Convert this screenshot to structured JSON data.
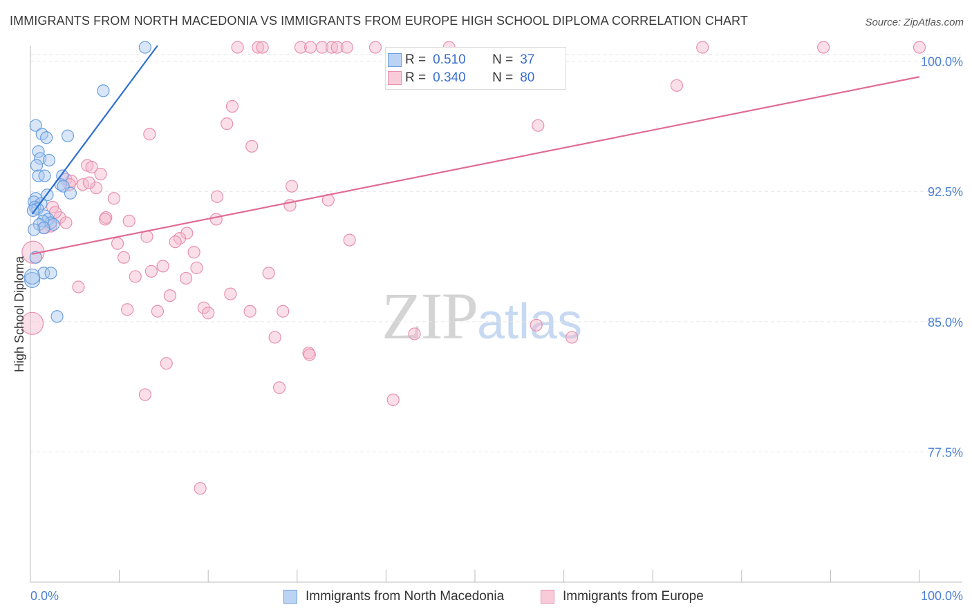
{
  "header": {
    "title": "IMMIGRANTS FROM NORTH MACEDONIA VS IMMIGRANTS FROM EUROPE HIGH SCHOOL DIPLOMA CORRELATION CHART",
    "source": "Source: ZipAtlas.com"
  },
  "watermark": {
    "zip": "ZIP",
    "atlas": "atlas"
  },
  "stats": {
    "row1": {
      "r_label": "R =",
      "r_value": "0.510",
      "n_label": "N =",
      "n_value": "37"
    },
    "row2": {
      "r_label": "R =",
      "r_value": "0.340",
      "n_label": "N =",
      "n_value": "80"
    }
  },
  "legend": {
    "item1": "Immigrants from North Macedonia",
    "item2": "Immigrants from Europe"
  },
  "colors": {
    "blue_fill": "#a8c8f0",
    "blue_stroke": "#6a9fe0",
    "blue_line": "#2f6fd0",
    "pink_fill": "#f5b8cb",
    "pink_stroke": "#e890ad",
    "pink_line": "#e06b95",
    "axis_text": "#4a7fd4",
    "grid": "#e6e6e6"
  },
  "chart_data": {
    "type": "scatter",
    "title": "IMMIGRANTS FROM NORTH MACEDONIA VS IMMIGRANTS FROM EUROPE HIGH SCHOOL DIPLOMA CORRELATION CHART",
    "xlabel": "",
    "ylabel": "High School Diploma",
    "xlim": [
      0,
      100
    ],
    "ylim": [
      70.0,
      100.9
    ],
    "x_tick_labels": [
      "0.0%",
      "100.0%"
    ],
    "y_ticks": [
      77.5,
      85.0,
      92.5,
      100.0
    ],
    "y_tick_labels": [
      "77.5%",
      "85.0%",
      "92.5%",
      "100.0%"
    ],
    "series": [
      {
        "name": "Immigrants from North Macedonia",
        "color": "blue",
        "r": 0.51,
        "n": 37,
        "trendline": {
          "x": [
            0.2,
            14.3
          ],
          "y": [
            91.2,
            100.9
          ]
        },
        "points": [
          {
            "x": 12.9,
            "y": 100.8
          },
          {
            "x": 8.2,
            "y": 98.3
          },
          {
            "x": 0.6,
            "y": 96.3
          },
          {
            "x": 1.3,
            "y": 95.8
          },
          {
            "x": 4.2,
            "y": 95.7
          },
          {
            "x": 1.8,
            "y": 95.6
          },
          {
            "x": 0.9,
            "y": 94.8
          },
          {
            "x": 1.1,
            "y": 94.4
          },
          {
            "x": 2.1,
            "y": 94.3
          },
          {
            "x": 0.7,
            "y": 94.0
          },
          {
            "x": 3.6,
            "y": 93.4
          },
          {
            "x": 0.9,
            "y": 93.4
          },
          {
            "x": 1.6,
            "y": 93.4
          },
          {
            "x": 3.4,
            "y": 92.9
          },
          {
            "x": 3.7,
            "y": 92.8
          },
          {
            "x": 1.9,
            "y": 92.3
          },
          {
            "x": 4.5,
            "y": 92.4
          },
          {
            "x": 0.6,
            "y": 92.1
          },
          {
            "x": 0.4,
            "y": 91.9
          },
          {
            "x": 1.2,
            "y": 91.8
          },
          {
            "x": 0.5,
            "y": 91.6
          },
          {
            "x": 0.8,
            "y": 91.5
          },
          {
            "x": 0.3,
            "y": 91.4
          },
          {
            "x": 1.6,
            "y": 91.1
          },
          {
            "x": 2.0,
            "y": 90.9
          },
          {
            "x": 2.3,
            "y": 90.7
          },
          {
            "x": 1.4,
            "y": 90.8
          },
          {
            "x": 2.6,
            "y": 90.6
          },
          {
            "x": 1.0,
            "y": 90.6
          },
          {
            "x": 1.5,
            "y": 90.4
          },
          {
            "x": 0.4,
            "y": 90.3
          },
          {
            "x": 0.6,
            "y": 88.7
          },
          {
            "x": 1.5,
            "y": 87.8
          },
          {
            "x": 2.3,
            "y": 87.8
          },
          {
            "x": 0.2,
            "y": 87.4
          },
          {
            "x": 3.0,
            "y": 85.3
          },
          {
            "x": 0.2,
            "y": 87.6
          }
        ]
      },
      {
        "name": "Immigrants from Europe",
        "color": "pink",
        "r": 0.34,
        "n": 80,
        "trendline": {
          "x": [
            0.2,
            100.0
          ],
          "y": [
            88.9,
            99.1
          ]
        },
        "points": [
          {
            "x": 23.3,
            "y": 100.8
          },
          {
            "x": 25.6,
            "y": 100.8
          },
          {
            "x": 26.1,
            "y": 100.8
          },
          {
            "x": 30.4,
            "y": 100.8
          },
          {
            "x": 31.5,
            "y": 100.8
          },
          {
            "x": 32.8,
            "y": 100.8
          },
          {
            "x": 33.9,
            "y": 100.8
          },
          {
            "x": 34.5,
            "y": 100.8
          },
          {
            "x": 35.6,
            "y": 100.8
          },
          {
            "x": 38.8,
            "y": 100.8
          },
          {
            "x": 47.1,
            "y": 100.8
          },
          {
            "x": 75.6,
            "y": 100.8
          },
          {
            "x": 89.2,
            "y": 100.8
          },
          {
            "x": 100.0,
            "y": 100.8
          },
          {
            "x": 72.7,
            "y": 98.6
          },
          {
            "x": 22.7,
            "y": 97.4
          },
          {
            "x": 22.1,
            "y": 96.4
          },
          {
            "x": 57.1,
            "y": 96.3
          },
          {
            "x": 13.4,
            "y": 95.8
          },
          {
            "x": 24.9,
            "y": 95.1
          },
          {
            "x": 6.4,
            "y": 94.0
          },
          {
            "x": 6.9,
            "y": 93.9
          },
          {
            "x": 7.9,
            "y": 93.5
          },
          {
            "x": 4.0,
            "y": 93.2
          },
          {
            "x": 4.6,
            "y": 93.1
          },
          {
            "x": 5.9,
            "y": 92.9
          },
          {
            "x": 29.4,
            "y": 92.8
          },
          {
            "x": 7.4,
            "y": 92.7
          },
          {
            "x": 21.0,
            "y": 92.2
          },
          {
            "x": 9.4,
            "y": 92.1
          },
          {
            "x": 33.5,
            "y": 92.0
          },
          {
            "x": 29.2,
            "y": 91.7
          },
          {
            "x": 2.5,
            "y": 91.6
          },
          {
            "x": 3.3,
            "y": 91.0
          },
          {
            "x": 8.5,
            "y": 91.0
          },
          {
            "x": 8.4,
            "y": 90.9
          },
          {
            "x": 20.9,
            "y": 90.9
          },
          {
            "x": 11.1,
            "y": 90.8
          },
          {
            "x": 4.0,
            "y": 90.7
          },
          {
            "x": 2.3,
            "y": 90.5
          },
          {
            "x": 1.6,
            "y": 90.4
          },
          {
            "x": 17.6,
            "y": 90.1
          },
          {
            "x": 13.1,
            "y": 89.9
          },
          {
            "x": 16.8,
            "y": 89.8
          },
          {
            "x": 16.3,
            "y": 89.6
          },
          {
            "x": 35.9,
            "y": 89.7
          },
          {
            "x": 9.8,
            "y": 89.5
          },
          {
            "x": 18.4,
            "y": 89.0
          },
          {
            "x": 0.3,
            "y": 89.0
          },
          {
            "x": 10.5,
            "y": 88.7
          },
          {
            "x": 14.9,
            "y": 88.2
          },
          {
            "x": 18.7,
            "y": 88.1
          },
          {
            "x": 13.6,
            "y": 87.9
          },
          {
            "x": 26.8,
            "y": 87.8
          },
          {
            "x": 11.8,
            "y": 87.6
          },
          {
            "x": 17.5,
            "y": 87.5
          },
          {
            "x": 5.4,
            "y": 87.0
          },
          {
            "x": 22.5,
            "y": 86.6
          },
          {
            "x": 15.7,
            "y": 86.5
          },
          {
            "x": 19.5,
            "y": 85.8
          },
          {
            "x": 10.9,
            "y": 85.7
          },
          {
            "x": 14.3,
            "y": 85.6
          },
          {
            "x": 20.0,
            "y": 85.5
          },
          {
            "x": 24.7,
            "y": 85.6
          },
          {
            "x": 28.4,
            "y": 85.6
          },
          {
            "x": 0.2,
            "y": 84.9
          },
          {
            "x": 56.9,
            "y": 84.8
          },
          {
            "x": 43.2,
            "y": 84.3
          },
          {
            "x": 27.5,
            "y": 84.1
          },
          {
            "x": 60.9,
            "y": 84.1
          },
          {
            "x": 31.3,
            "y": 83.2
          },
          {
            "x": 31.4,
            "y": 83.1
          },
          {
            "x": 15.3,
            "y": 82.6
          },
          {
            "x": 28.0,
            "y": 81.2
          },
          {
            "x": 12.9,
            "y": 80.8
          },
          {
            "x": 40.8,
            "y": 80.5
          },
          {
            "x": 19.1,
            "y": 75.4
          },
          {
            "x": 4.4,
            "y": 92.9
          },
          {
            "x": 6.6,
            "y": 93.0
          },
          {
            "x": 2.8,
            "y": 91.3
          }
        ]
      }
    ]
  }
}
